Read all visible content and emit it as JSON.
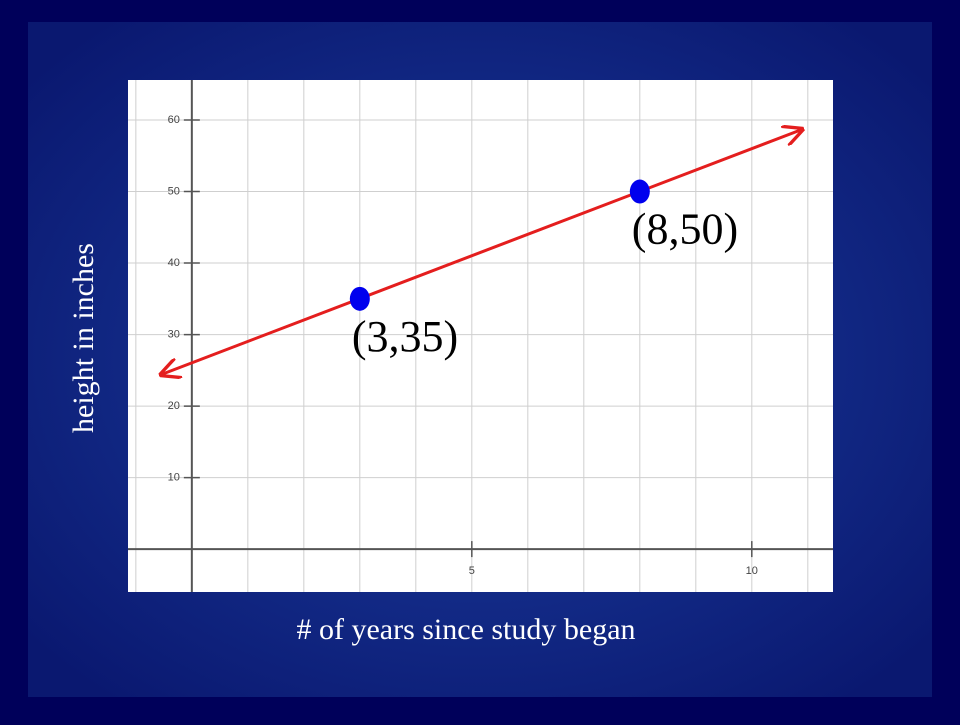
{
  "chart_data": {
    "type": "scatter",
    "x_label": "# of years since study began",
    "y_label": "height in inches",
    "series": [
      {
        "color": "#0000ee",
        "x": [
          3,
          8
        ],
        "values": [
          35,
          50
        ]
      }
    ],
    "line": {
      "color": "#e41e1e",
      "x": [
        -0.55,
        10.9
      ],
      "values": [
        24.4,
        58.7
      ]
    },
    "annotations": [
      "(3,35)",
      "(8,50)"
    ],
    "xlim": [
      -1.14,
      11.45
    ],
    "ylim": [
      -6,
      65.6
    ],
    "xticks": [
      5,
      10
    ],
    "yticks": [
      10,
      20,
      30,
      40,
      50,
      60
    ],
    "grid": true
  }
}
